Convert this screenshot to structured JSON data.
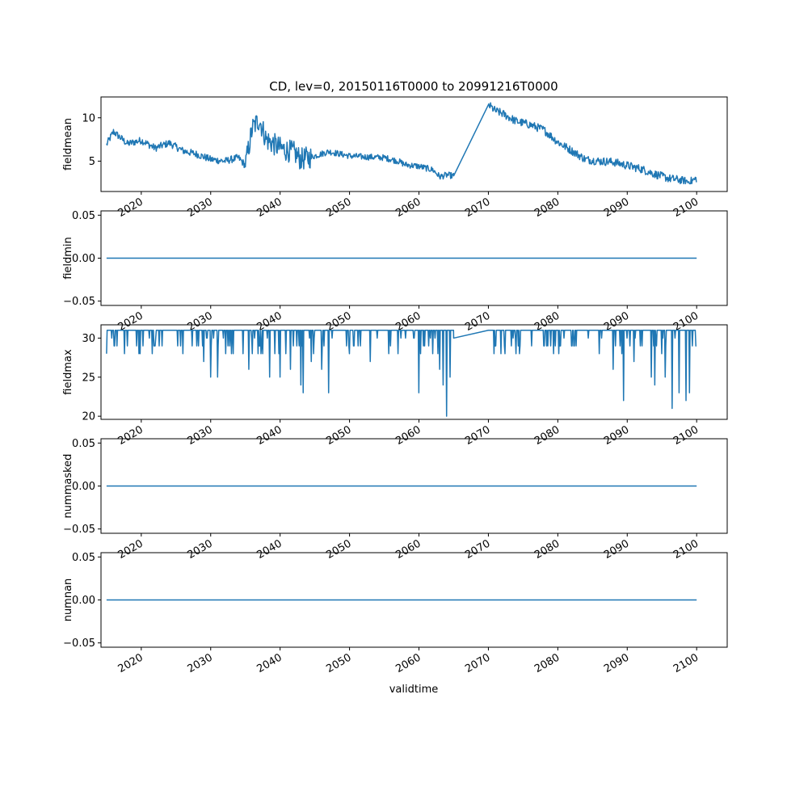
{
  "chart_data": {
    "type": "line",
    "title": "CD, lev=0, 20150116T0000 to 20991216T0000",
    "xlabel": "validtime",
    "xlim": [
      2014.2,
      2104.4
    ],
    "x_ticks": [
      2020,
      2030,
      2040,
      2050,
      2060,
      2070,
      2080,
      2090,
      2100
    ],
    "x_tick_labels": [
      "2020",
      "2030",
      "2040",
      "2050",
      "2060",
      "2070",
      "2080",
      "2090",
      "2100"
    ],
    "series_color": "#1f77b4",
    "gap": [
      2065.0,
      2070.0
    ],
    "panels": [
      {
        "name": "fieldmean",
        "ylabel": "fieldmean",
        "ylim": [
          1.5,
          12.4
        ],
        "yticks": [
          5,
          10
        ],
        "ytick_labels": [
          "5",
          "10"
        ],
        "x": [
          2015,
          2016,
          2018,
          2020,
          2022,
          2024,
          2026,
          2028,
          2030,
          2032,
          2034,
          2035,
          2036,
          2037,
          2038,
          2040,
          2042,
          2043,
          2044,
          2045,
          2047,
          2050,
          2052,
          2055,
          2057,
          2058,
          2060,
          2062,
          2063,
          2064,
          2065,
          2070,
          2071,
          2072,
          2074,
          2076,
          2078,
          2080,
          2082,
          2084,
          2086,
          2088,
          2090,
          2092,
          2094,
          2096,
          2097,
          2099,
          2100
        ],
        "values": [
          6.9,
          8.4,
          7.0,
          7.4,
          6.5,
          7.1,
          6.2,
          5.8,
          5.2,
          5.0,
          5.4,
          4.5,
          8.8,
          9.8,
          7.5,
          6.5,
          6.0,
          5.2,
          5.4,
          5.6,
          6.1,
          5.6,
          5.5,
          5.4,
          5.0,
          4.6,
          4.4,
          4.0,
          3.2,
          3.4,
          3.3,
          11.5,
          10.8,
          10.5,
          9.6,
          9.2,
          8.6,
          7.2,
          6.2,
          5.2,
          5.0,
          4.9,
          4.5,
          4.1,
          3.5,
          3.0,
          2.9,
          2.6,
          3.0
        ],
        "noise": [
          {
            "x0": 2015,
            "x1": 2035,
            "amp": 0.7
          },
          {
            "x0": 2035,
            "x1": 2044.5,
            "amp": 2.2
          },
          {
            "x0": 2044.5,
            "x1": 2065,
            "amp": 0.6
          },
          {
            "x0": 2070,
            "x1": 2100,
            "amp": 0.8
          }
        ]
      },
      {
        "name": "fieldmin",
        "ylabel": "fieldmin",
        "ylim": [
          -0.055,
          0.055
        ],
        "yticks": [
          -0.05,
          0.0,
          0.05
        ],
        "ytick_labels": [
          "−0.05",
          "0.00",
          "0.05"
        ],
        "x": [
          2015,
          2100
        ],
        "values": [
          0,
          0
        ]
      },
      {
        "name": "fieldmax",
        "ylabel": "fieldmax",
        "ylim": [
          19.6,
          31.7
        ],
        "yticks": [
          20,
          25,
          30
        ],
        "ytick_labels": [
          "20",
          "25",
          "30"
        ],
        "x": [
          2015,
          2100
        ],
        "values": [
          31,
          31
        ],
        "baseline": 31,
        "gap_values": [
          30,
          31
        ],
        "dips": [
          {
            "x": 2015.0,
            "y": 28
          },
          {
            "x": 2016.5,
            "y": 29
          },
          {
            "x": 2018.0,
            "y": 29
          },
          {
            "x": 2022.0,
            "y": 29
          },
          {
            "x": 2026.0,
            "y": 28
          },
          {
            "x": 2029.0,
            "y": 27
          },
          {
            "x": 2030.0,
            "y": 25
          },
          {
            "x": 2031.0,
            "y": 25
          },
          {
            "x": 2033.0,
            "y": 28
          },
          {
            "x": 2035.5,
            "y": 26
          },
          {
            "x": 2038.5,
            "y": 25
          },
          {
            "x": 2040.0,
            "y": 25
          },
          {
            "x": 2041.5,
            "y": 26
          },
          {
            "x": 2043.0,
            "y": 24
          },
          {
            "x": 2043.3,
            "y": 23
          },
          {
            "x": 2044.5,
            "y": 27
          },
          {
            "x": 2046.0,
            "y": 26
          },
          {
            "x": 2047.0,
            "y": 23
          },
          {
            "x": 2050.0,
            "y": 28
          },
          {
            "x": 2053.0,
            "y": 27
          },
          {
            "x": 2057.0,
            "y": 28
          },
          {
            "x": 2060.0,
            "y": 23
          },
          {
            "x": 2062.0,
            "y": 28
          },
          {
            "x": 2063.0,
            "y": 26
          },
          {
            "x": 2063.5,
            "y": 24
          },
          {
            "x": 2064.0,
            "y": 20
          },
          {
            "x": 2064.5,
            "y": 25
          },
          {
            "x": 2071.0,
            "y": 29
          },
          {
            "x": 2074.0,
            "y": 28
          },
          {
            "x": 2078.0,
            "y": 29
          },
          {
            "x": 2082.0,
            "y": 29
          },
          {
            "x": 2086.0,
            "y": 28
          },
          {
            "x": 2088.0,
            "y": 26
          },
          {
            "x": 2089.5,
            "y": 22
          },
          {
            "x": 2091.0,
            "y": 27
          },
          {
            "x": 2093.5,
            "y": 25
          },
          {
            "x": 2094.0,
            "y": 24
          },
          {
            "x": 2095.5,
            "y": 25
          },
          {
            "x": 2096.5,
            "y": 21
          },
          {
            "x": 2097.5,
            "y": 23
          },
          {
            "x": 2098.5,
            "y": 22
          },
          {
            "x": 2099.0,
            "y": 23
          },
          {
            "x": 2100.0,
            "y": 29
          }
        ]
      },
      {
        "name": "nummasked",
        "ylabel": "nummasked",
        "ylim": [
          -0.055,
          0.055
        ],
        "yticks": [
          -0.05,
          0.0,
          0.05
        ],
        "ytick_labels": [
          "−0.05",
          "0.00",
          "0.05"
        ],
        "x": [
          2015,
          2100
        ],
        "values": [
          0,
          0
        ]
      },
      {
        "name": "numnan",
        "ylabel": "numnan",
        "ylim": [
          -0.055,
          0.055
        ],
        "yticks": [
          -0.05,
          0.0,
          0.05
        ],
        "ytick_labels": [
          "−0.05",
          "0.00",
          "0.05"
        ],
        "x": [
          2015,
          2100
        ],
        "values": [
          0,
          0
        ]
      }
    ]
  }
}
